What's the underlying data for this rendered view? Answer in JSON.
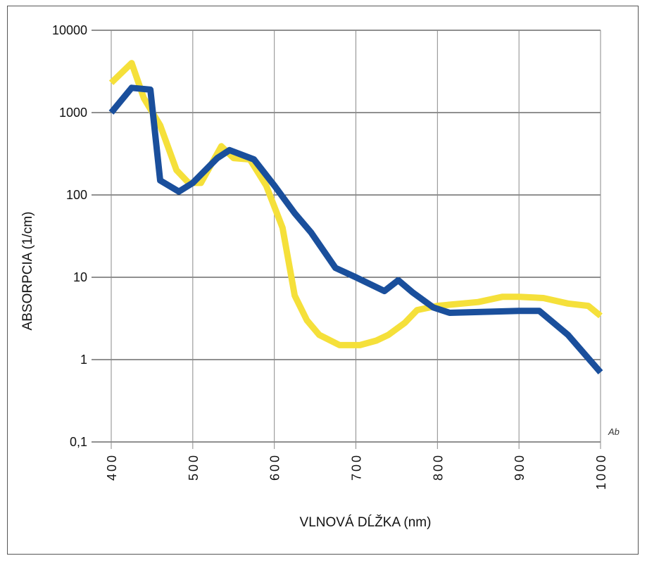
{
  "chart_data": {
    "type": "line",
    "xlabel": "VLNOVÁ DĹŽKA (nm)",
    "ylabel": "ABSORPCIA (1/cm)",
    "x_ticks": [
      400,
      500,
      600,
      700,
      800,
      900,
      1000
    ],
    "x_tick_labels": [
      "400",
      "500",
      "600",
      "700",
      "800",
      "900",
      "1000"
    ],
    "y_ticks": [
      0.1,
      1,
      10,
      100,
      1000,
      10000
    ],
    "y_tick_labels": [
      "0,1",
      "1",
      "10",
      "100",
      "1000",
      "10000"
    ],
    "xlim": [
      400,
      1000
    ],
    "ylim": [
      0.1,
      10000
    ],
    "y_scale": "log",
    "grid": true,
    "corner_mark": "Ab",
    "series": [
      {
        "color": "#f5e03a",
        "points": [
          [
            400,
            2300
          ],
          [
            425,
            4000
          ],
          [
            440,
            1500
          ],
          [
            460,
            700
          ],
          [
            480,
            200
          ],
          [
            495,
            140
          ],
          [
            510,
            140
          ],
          [
            535,
            390
          ],
          [
            550,
            280
          ],
          [
            570,
            270
          ],
          [
            590,
            130
          ],
          [
            610,
            40
          ],
          [
            625,
            6
          ],
          [
            640,
            3
          ],
          [
            655,
            2
          ],
          [
            680,
            1.5
          ],
          [
            705,
            1.5
          ],
          [
            725,
            1.7
          ],
          [
            740,
            2
          ],
          [
            760,
            2.8
          ],
          [
            775,
            4
          ],
          [
            800,
            4.5
          ],
          [
            850,
            5
          ],
          [
            880,
            5.8
          ],
          [
            900,
            5.8
          ],
          [
            930,
            5.6
          ],
          [
            960,
            4.8
          ],
          [
            985,
            4.5
          ],
          [
            1000,
            3.4
          ]
        ]
      },
      {
        "color": "#1a4f9c",
        "points": [
          [
            400,
            1000
          ],
          [
            425,
            2000
          ],
          [
            448,
            1900
          ],
          [
            460,
            150
          ],
          [
            483,
            110
          ],
          [
            500,
            140
          ],
          [
            530,
            280
          ],
          [
            545,
            350
          ],
          [
            575,
            270
          ],
          [
            600,
            130
          ],
          [
            625,
            60
          ],
          [
            645,
            35
          ],
          [
            675,
            13
          ],
          [
            700,
            10
          ],
          [
            735,
            6.8
          ],
          [
            752,
            9.2
          ],
          [
            770,
            6.5
          ],
          [
            795,
            4.3
          ],
          [
            815,
            3.7
          ],
          [
            900,
            3.9
          ],
          [
            925,
            3.9
          ],
          [
            960,
            2
          ],
          [
            1000,
            0.7
          ]
        ]
      }
    ]
  }
}
